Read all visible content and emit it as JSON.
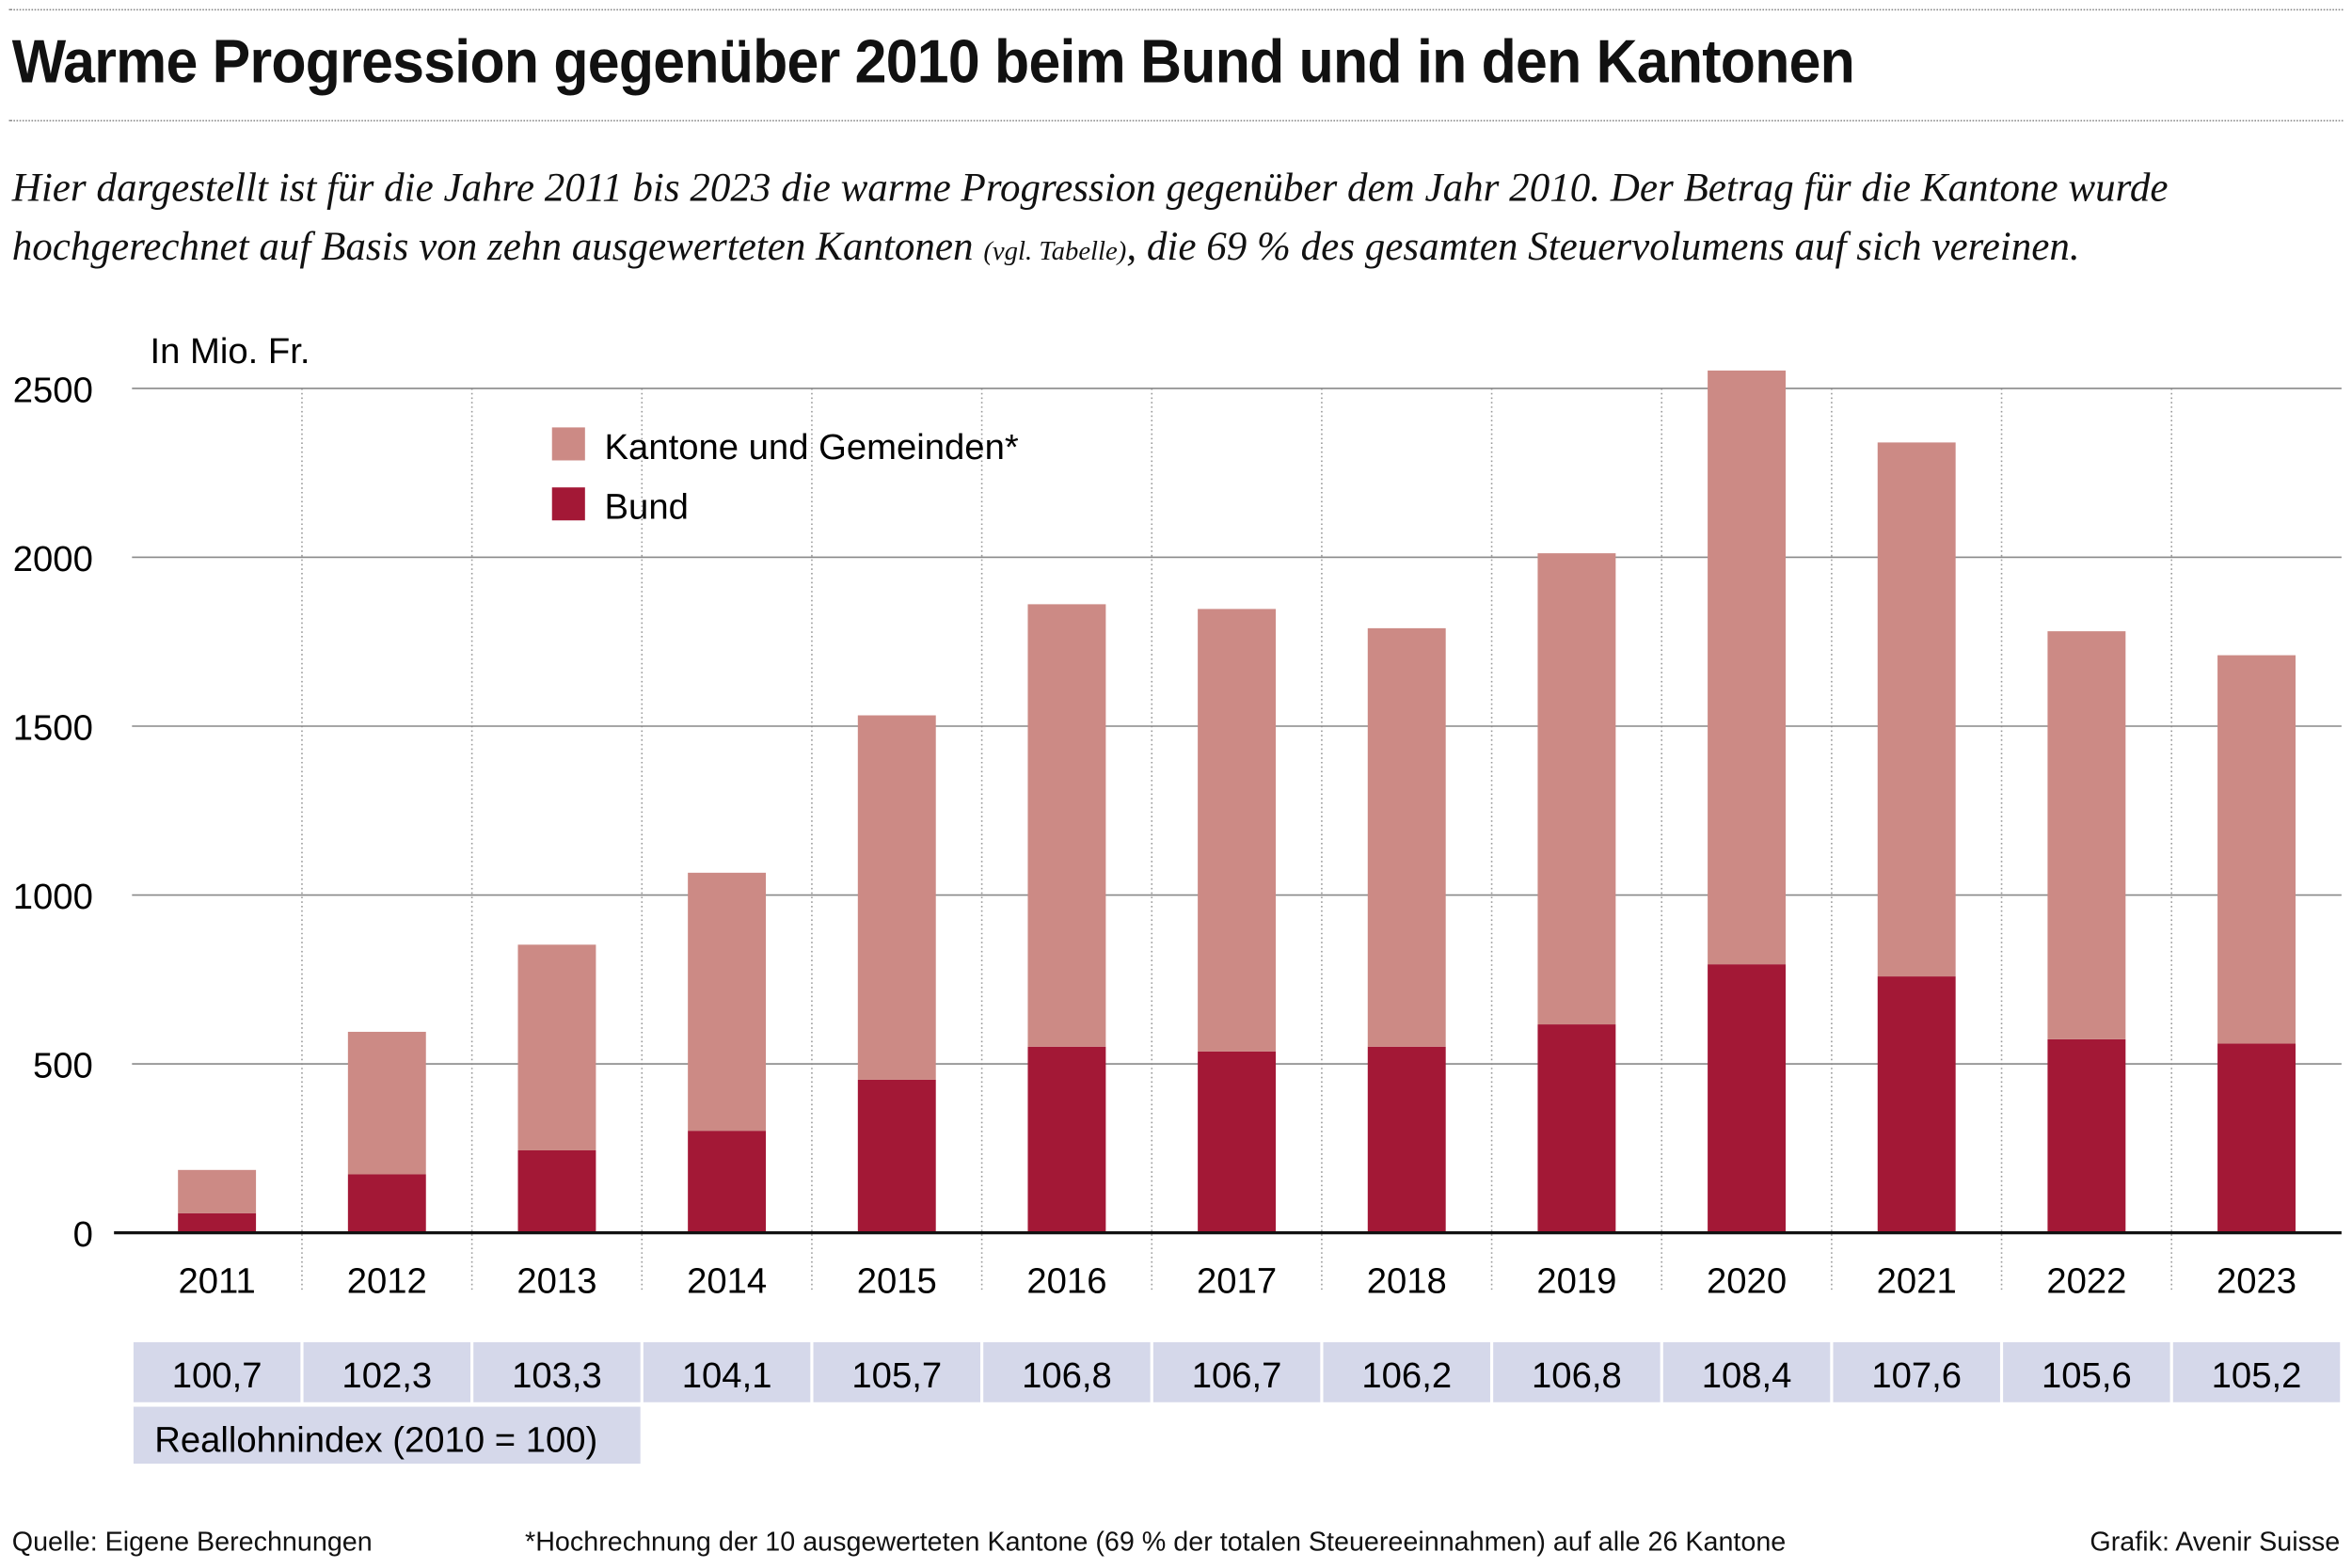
{
  "title": "Warme Progression gegenüber 2010 beim Bund und in den Kantonen",
  "subtitle": {
    "part1": "Hier dargestellt ist für die Jahre 2011 bis 2023 die warme Progression gegenüber dem Jahr 2010. Der Betrag für die Kantone wurde hochgerechnet auf Basis von zehn ausgewerteten Kantonen ",
    "small": "(vgl. Tabelle)",
    "part2": ", die 69 % des gesamten Steuervolumens auf sich vereinen."
  },
  "chart_data": {
    "type": "bar",
    "stacked": true,
    "ylabel": "In Mio. Fr.",
    "ylim": [
      0,
      2500
    ],
    "yticks": [
      0,
      500,
      1000,
      1500,
      2000,
      2500
    ],
    "grid": true,
    "legend_position": "top-left",
    "categories": [
      "2011",
      "2012",
      "2013",
      "2014",
      "2015",
      "2016",
      "2017",
      "2018",
      "2019",
      "2020",
      "2021",
      "2022",
      "2023"
    ],
    "series": [
      {
        "name": "Bund",
        "color": "#a31836",
        "values": [
          58,
          173,
          244,
          302,
          453,
          551,
          537,
          551,
          617,
          795,
          759,
          573,
          560
        ]
      },
      {
        "name": "Kantone und Gemeinden*",
        "color": "#cc8a85",
        "values": [
          128,
          422,
          609,
          764,
          1079,
          1310,
          1310,
          1239,
          1395,
          1758,
          1581,
          1208,
          1150
        ]
      }
    ],
    "index_row": {
      "label": "Reallohnindex (2010 = 100)",
      "values": [
        "100,7",
        "102,3",
        "103,3",
        "104,1",
        "105,7",
        "106,8",
        "106,7",
        "106,2",
        "106,8",
        "108,4",
        "107,6",
        "105,6",
        "105,2"
      ],
      "color": "#d5d8ea"
    }
  },
  "footer": {
    "source": "Quelle: Eigene Berechnungen",
    "note": "*Hochrechnung der 10 ausgewerteten Kantone (69 % der totalen Steuereeinnahmen) auf alle 26 Kantone",
    "credit": "Grafik: Avenir Suisse"
  }
}
